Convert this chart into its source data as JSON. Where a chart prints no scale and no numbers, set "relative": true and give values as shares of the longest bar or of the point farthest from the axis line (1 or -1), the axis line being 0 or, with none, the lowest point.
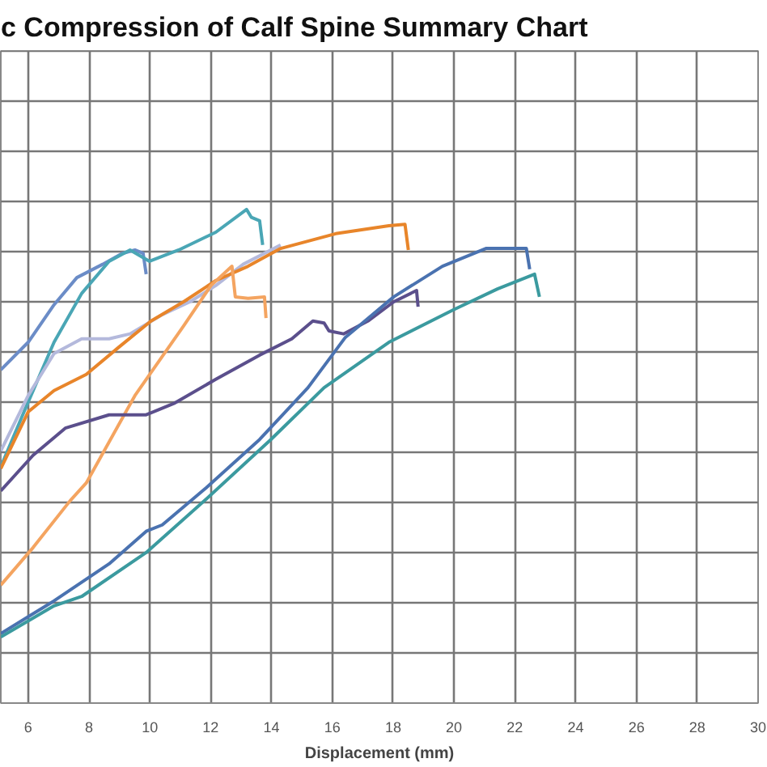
{
  "chart_data": {
    "type": "line",
    "title": "c Compression of Calf Spine Summary Chart",
    "xlabel": "Displacement (mm)",
    "relative": true,
    "xlim": [
      5.1,
      30
    ],
    "xticks": [
      6,
      8,
      10,
      12,
      14,
      16,
      18,
      20,
      22,
      24,
      26,
      28,
      30
    ],
    "grid": true,
    "line_style": "solid",
    "series": [
      {
        "color": "#6b8cc7",
        "x": [
          5.1,
          6.0,
          6.85,
          7.6,
          8.45,
          9.09,
          9.51,
          9.78,
          9.88
        ],
        "values": [
          0.675,
          0.731,
          0.807,
          0.862,
          0.889,
          0.911,
          0.918,
          0.911,
          0.869
        ]
      },
      {
        "color": "#4aa6b5",
        "x": [
          5.1,
          6.0,
          6.85,
          7.76,
          8.66,
          9.35,
          9.99,
          10.95,
          12.17,
          13.18,
          13.34,
          13.61,
          13.71
        ],
        "values": [
          0.479,
          0.61,
          0.731,
          0.83,
          0.895,
          0.918,
          0.895,
          0.918,
          0.954,
          1.0,
          0.984,
          0.977,
          0.928
        ]
      },
      {
        "color": "#b4b9dc",
        "x": [
          5.1,
          6.0,
          6.85,
          7.76,
          8.66,
          9.35,
          10.41,
          11.32,
          12.17,
          13.07,
          14.3
        ],
        "values": [
          0.511,
          0.623,
          0.708,
          0.738,
          0.738,
          0.748,
          0.787,
          0.813,
          0.846,
          0.889,
          0.928
        ]
      },
      {
        "color": "#e8852a",
        "x": [
          5.1,
          6.0,
          6.85,
          7.91,
          8.98,
          10.04,
          11.11,
          12.17,
          13.23,
          14.3,
          16.11,
          17.86,
          18.39,
          18.5
        ],
        "values": [
          0.475,
          0.59,
          0.633,
          0.666,
          0.721,
          0.774,
          0.813,
          0.856,
          0.885,
          0.921,
          0.951,
          0.967,
          0.97,
          0.918
        ]
      },
      {
        "color": "#f4a460",
        "x": [
          5.1,
          6.16,
          7.38,
          7.91,
          9.51,
          11.11,
          12.01,
          12.7,
          12.81,
          13.23,
          13.77,
          13.82
        ],
        "values": [
          0.239,
          0.315,
          0.41,
          0.446,
          0.623,
          0.764,
          0.846,
          0.885,
          0.823,
          0.82,
          0.823,
          0.78
        ]
      },
      {
        "color": "#5b4f8c",
        "x": [
          5.1,
          6.16,
          7.22,
          8.66,
          9.88,
          10.79,
          12.17,
          13.61,
          14.67,
          15.36,
          15.73,
          15.89,
          16.37,
          17.17,
          18.02,
          18.77,
          18.82
        ],
        "values": [
          0.43,
          0.502,
          0.557,
          0.584,
          0.584,
          0.607,
          0.656,
          0.705,
          0.738,
          0.774,
          0.77,
          0.754,
          0.748,
          0.774,
          0.813,
          0.836,
          0.803
        ]
      },
      {
        "color": "#4a72b0",
        "x": [
          5.1,
          6.85,
          8.66,
          9.88,
          10.41,
          11.85,
          13.61,
          15.2,
          16.43,
          18.02,
          19.62,
          21.05,
          22.38,
          22.49
        ],
        "values": [
          0.141,
          0.207,
          0.282,
          0.348,
          0.361,
          0.436,
          0.534,
          0.639,
          0.741,
          0.823,
          0.885,
          0.921,
          0.921,
          0.879
        ]
      },
      {
        "color": "#3b9a9f",
        "x": [
          5.1,
          6.85,
          7.76,
          9.88,
          11.85,
          13.98,
          15.73,
          17.86,
          19.99,
          21.43,
          22.65,
          22.81
        ],
        "values": [
          0.134,
          0.197,
          0.216,
          0.305,
          0.413,
          0.534,
          0.639,
          0.731,
          0.797,
          0.839,
          0.869,
          0.823
        ]
      }
    ]
  }
}
